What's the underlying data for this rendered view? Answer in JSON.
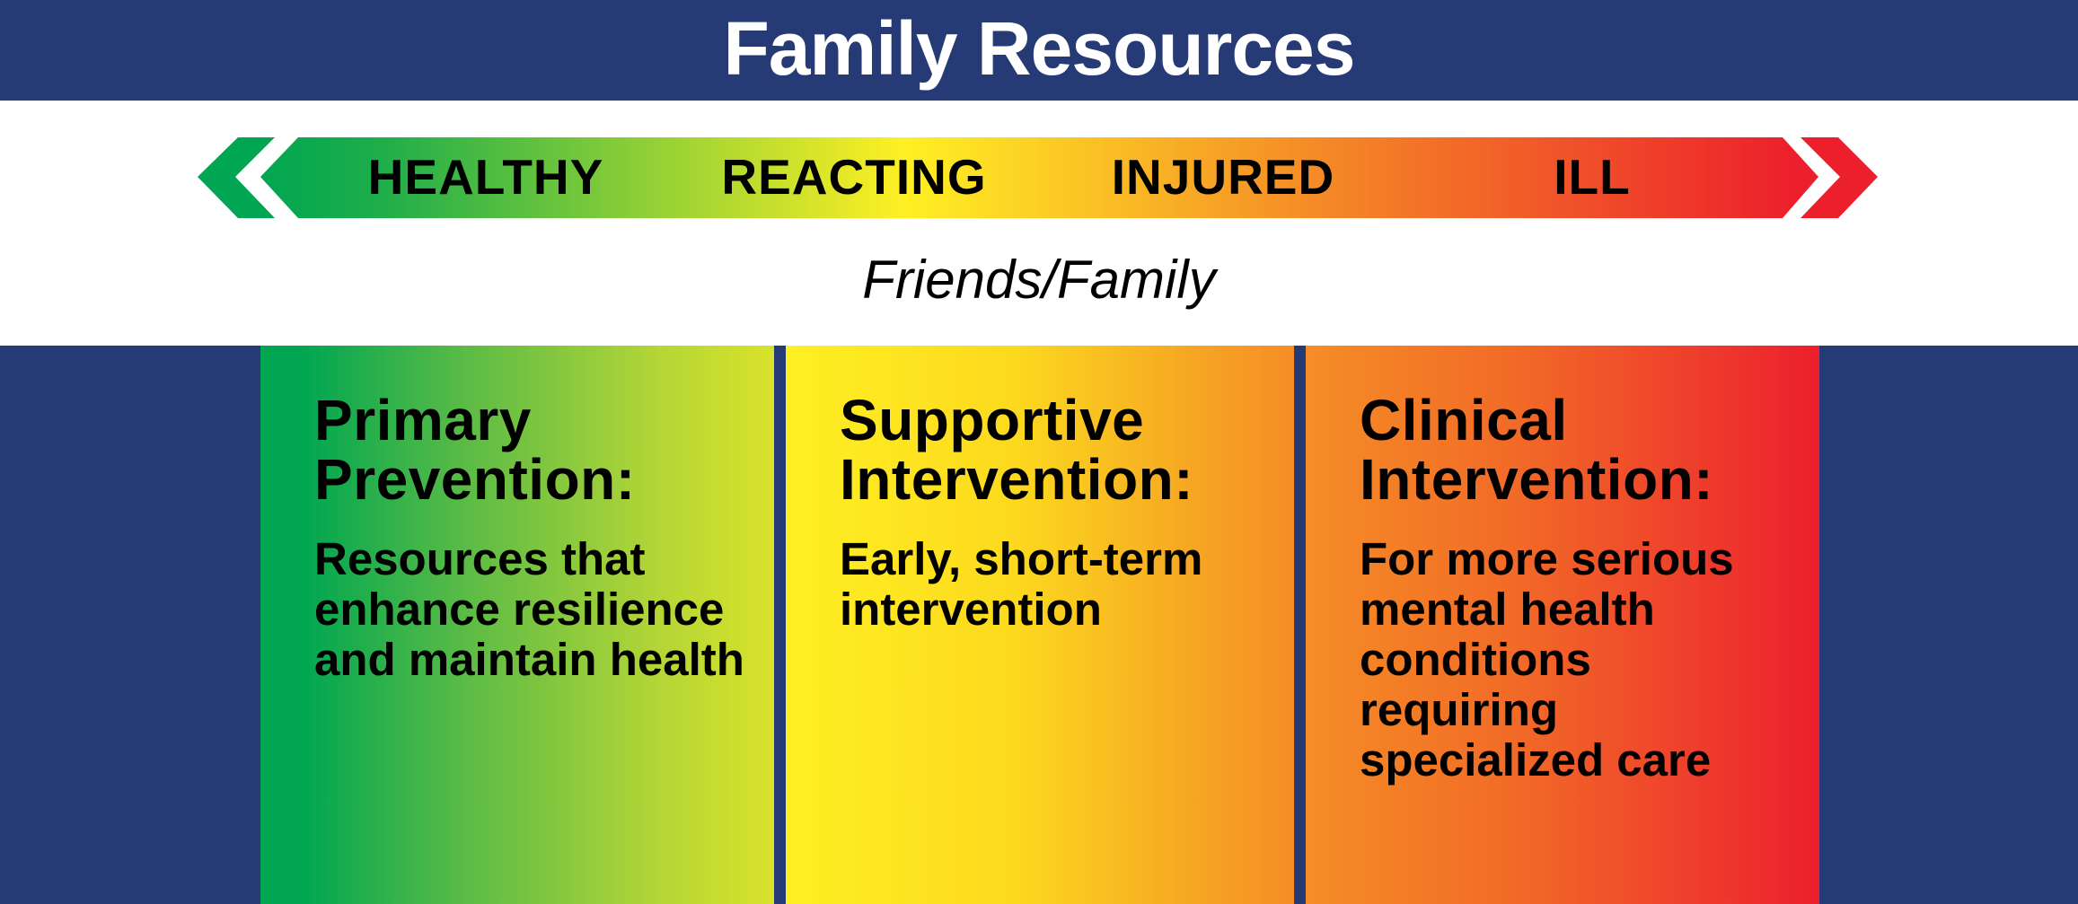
{
  "header": {
    "title": "Family Resources"
  },
  "continuum": {
    "stages": [
      {
        "label": "HEALTHY"
      },
      {
        "label": "REACTING"
      },
      {
        "label": "INJURED"
      },
      {
        "label": "ILL"
      }
    ],
    "colors": {
      "green": "#00a651",
      "yellow": "#fff023",
      "orange": "#f58d26",
      "red": "#ec1f2c"
    }
  },
  "friends_family": "Friends/Family",
  "panels": [
    {
      "heading_line1": "Primary",
      "heading_line2": "Prevention:",
      "body": "Resources that enhance resilience and maintain health"
    },
    {
      "heading_line1": "Supportive",
      "heading_line2": "Intervention:",
      "body": "Early, short-term intervention"
    },
    {
      "heading_line1": "Clinical",
      "heading_line2": "Intervention:",
      "body": "For more serious mental health conditions requiring specialized care"
    }
  ],
  "theme": {
    "navy": "#263a75"
  }
}
